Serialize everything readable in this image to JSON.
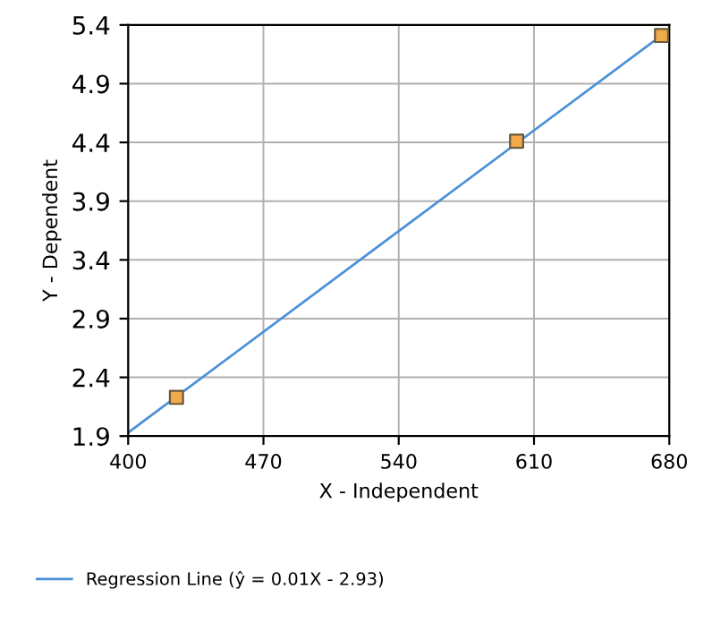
{
  "chart_data": {
    "type": "line",
    "xlabel": "X - Independent",
    "ylabel": "Y - Dependent",
    "xlim": [
      400,
      680
    ],
    "xticks": [
      400,
      470,
      540,
      610,
      680
    ],
    "ylim": [
      1.9,
      5.4
    ],
    "yticks": [
      1.9,
      2.4,
      2.9,
      3.4,
      3.9,
      4.4,
      4.9,
      5.4
    ],
    "grid": true,
    "legend": "bottom",
    "series": [
      {
        "type": "scatter",
        "marker": "square",
        "color": "#f0aa4a",
        "x": [
          425,
          601,
          676
        ],
        "values": [
          2.23,
          4.41,
          5.31
        ]
      },
      {
        "name": "Regression Line (ŷ = 0.01X - 2.93)",
        "marker": "none",
        "color": "#4a8fd8",
        "x": [
          400,
          680
        ],
        "values": [
          1.93,
          5.36
        ]
      }
    ]
  }
}
